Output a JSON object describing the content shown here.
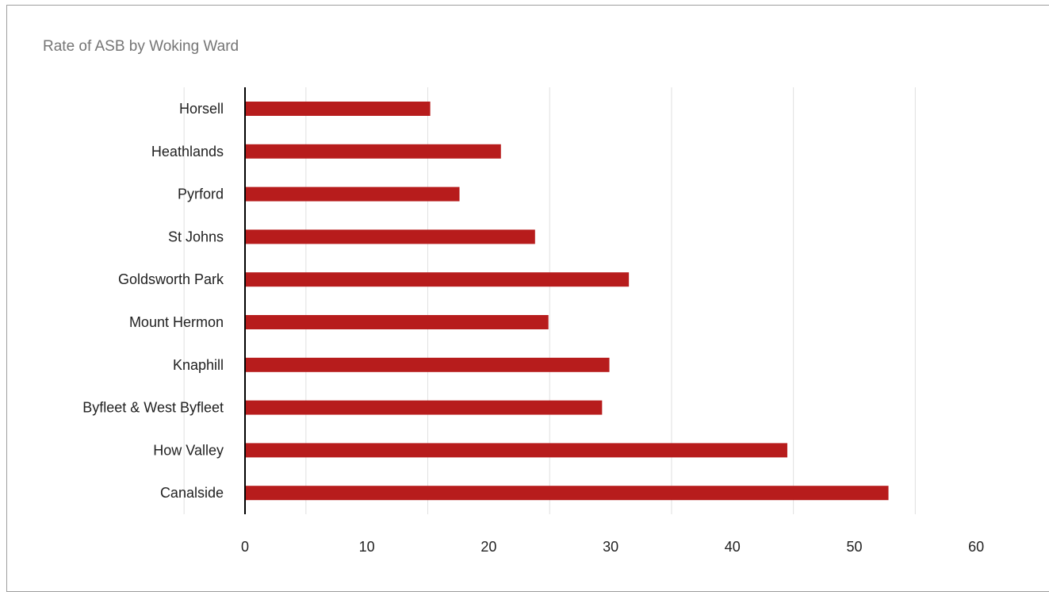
{
  "chart_data": {
    "type": "bar",
    "orientation": "horizontal",
    "title": "Rate of ASB by Woking Ward",
    "xlabel": "",
    "ylabel": "",
    "categories": [
      "Horsell",
      "Heathlands",
      "Pyrford",
      "St Johns",
      "Goldsworth Park",
      "Mount Hermon",
      "Knaphill",
      "Byfleet & West Byfleet",
      "How Valley",
      "Canalside"
    ],
    "values": [
      15.2,
      21.0,
      17.6,
      23.8,
      31.5,
      24.9,
      29.9,
      29.3,
      44.5,
      52.8
    ],
    "xlim": [
      0,
      60
    ],
    "xticks": [
      "0",
      "10",
      "20",
      "30",
      "40",
      "50",
      "60"
    ],
    "grid": true,
    "legend": "none",
    "bar_color": "#b71c1c"
  }
}
